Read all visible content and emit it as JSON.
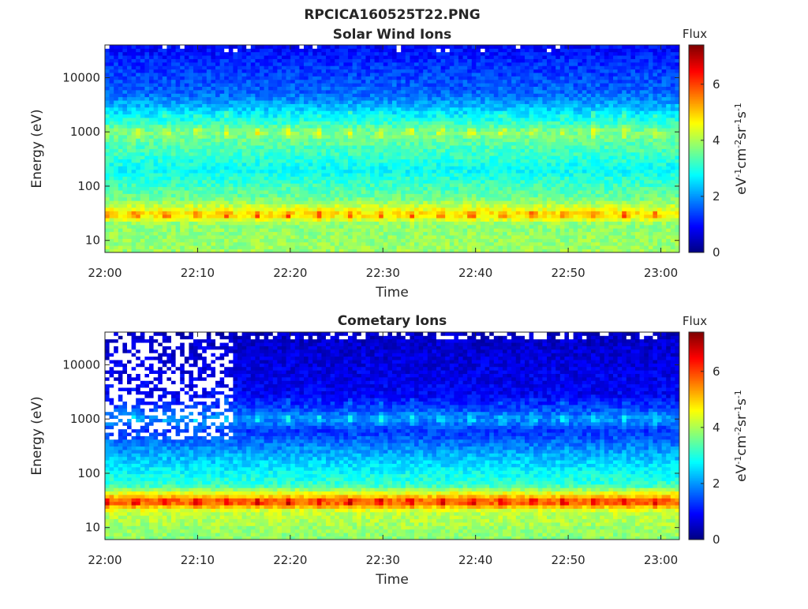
{
  "title": "RPCICA160525T22.PNG",
  "chart_data": [
    {
      "type": "heatmap",
      "title": "Solar Wind Ions",
      "xlabel": "Time",
      "ylabel": "Energy (eV)",
      "x_ticks": [
        "22:00",
        "22:10",
        "22:20",
        "22:30",
        "22:40",
        "22:50",
        "23:00"
      ],
      "xlim": [
        "22:00",
        "23:02"
      ],
      "y_scale": "log",
      "ylim": [
        6,
        40000
      ],
      "y_ticks": [
        10,
        100,
        1000,
        10000
      ],
      "y_tick_labels": [
        "10",
        "100",
        "1000",
        "10000"
      ],
      "colorbar": {
        "label": "Flux",
        "unit_label": "eV-1cm-2sr-1s-1",
        "range": [
          0,
          7.4
        ],
        "ticks": [
          0,
          2,
          4,
          6
        ],
        "tick_labels": [
          "0",
          "2",
          "4",
          "6"
        ],
        "colormap": "jet"
      },
      "energy_profile": [
        {
          "energy_ev": 7,
          "flux": 3.9
        },
        {
          "energy_ev": 20,
          "flux": 3.8
        },
        {
          "energy_ev": 30,
          "flux": 4.9
        },
        {
          "energy_ev": 60,
          "flux": 3.6
        },
        {
          "energy_ev": 200,
          "flux": 2.8
        },
        {
          "energy_ev": 1000,
          "flux": 3.7
        },
        {
          "energy_ev": 2200,
          "flux": 2.6
        },
        {
          "energy_ev": 5000,
          "flux": 1.7
        },
        {
          "energy_ev": 20000,
          "flux": 1.2
        },
        {
          "energy_ev": 40000,
          "flux": 0.9
        }
      ],
      "low_count_region": {
        "before_time": "22:14",
        "above_energy_ev": 35000
      }
    },
    {
      "type": "heatmap",
      "title": "Cometary Ions",
      "xlabel": "Time",
      "ylabel": "Energy (eV)",
      "x_ticks": [
        "22:00",
        "22:10",
        "22:20",
        "22:30",
        "22:40",
        "22:50",
        "23:00"
      ],
      "xlim": [
        "22:00",
        "23:02"
      ],
      "y_scale": "log",
      "ylim": [
        6,
        40000
      ],
      "y_ticks": [
        10,
        100,
        1000,
        10000
      ],
      "y_tick_labels": [
        "10",
        "100",
        "1000",
        "10000"
      ],
      "colorbar": {
        "label": "Flux",
        "unit_label": "eV-1cm-2sr-1s-1",
        "range": [
          0,
          7.4
        ],
        "ticks": [
          0,
          2,
          4,
          6
        ],
        "tick_labels": [
          "0",
          "2",
          "4",
          "6"
        ],
        "colormap": "jet"
      },
      "energy_profile": [
        {
          "energy_ev": 7,
          "flux": 3.8
        },
        {
          "energy_ev": 20,
          "flux": 4.2
        },
        {
          "energy_ev": 30,
          "flux": 6.0
        },
        {
          "energy_ev": 60,
          "flux": 3.2
        },
        {
          "energy_ev": 200,
          "flux": 2.3
        },
        {
          "energy_ev": 600,
          "flux": 1.3
        },
        {
          "energy_ev": 1000,
          "flux": 2.0
        },
        {
          "energy_ev": 2500,
          "flux": 0.9
        },
        {
          "energy_ev": 10000,
          "flux": 0.7
        },
        {
          "energy_ev": 40000,
          "flux": 0.5
        }
      ],
      "low_count_region": {
        "before_time": "22:14",
        "above_energy_ev": 400
      }
    }
  ]
}
